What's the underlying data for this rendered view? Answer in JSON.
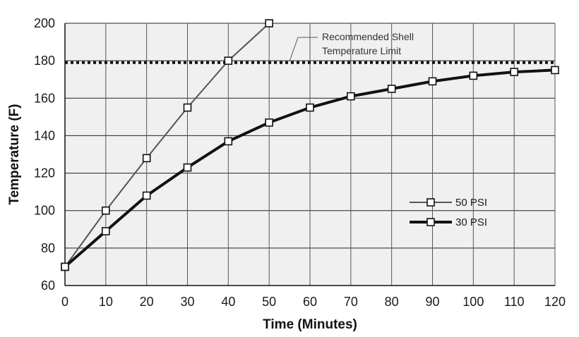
{
  "chart_data": {
    "type": "line",
    "xlabel": "Time (Minutes)",
    "ylabel": "Temperature (F)",
    "xlim": [
      0,
      120
    ],
    "ylim": [
      60,
      200
    ],
    "x_ticks": [
      0,
      10,
      20,
      30,
      40,
      50,
      60,
      70,
      80,
      90,
      100,
      110,
      120
    ],
    "y_ticks": [
      60,
      80,
      100,
      120,
      140,
      160,
      180,
      200
    ],
    "grid": true,
    "legend_position": "right",
    "series": [
      {
        "name": "50 PSI",
        "marker": "square",
        "color": "#555555",
        "x": [
          0,
          10,
          20,
          30,
          40,
          50
        ],
        "y": [
          70,
          100,
          128,
          155,
          180,
          200
        ]
      },
      {
        "name": "30 PSI",
        "marker": "square",
        "color": "#111111",
        "x": [
          0,
          10,
          20,
          30,
          40,
          50,
          60,
          70,
          80,
          90,
          100,
          110,
          120
        ],
        "y": [
          70,
          89,
          108,
          123,
          137,
          147,
          155,
          161,
          165,
          169,
          172,
          174,
          175
        ]
      }
    ],
    "reference_line": {
      "y": 179,
      "style": "dotted",
      "label_line1": "Recommended Shell",
      "label_line2": "Temperature Limit"
    }
  }
}
